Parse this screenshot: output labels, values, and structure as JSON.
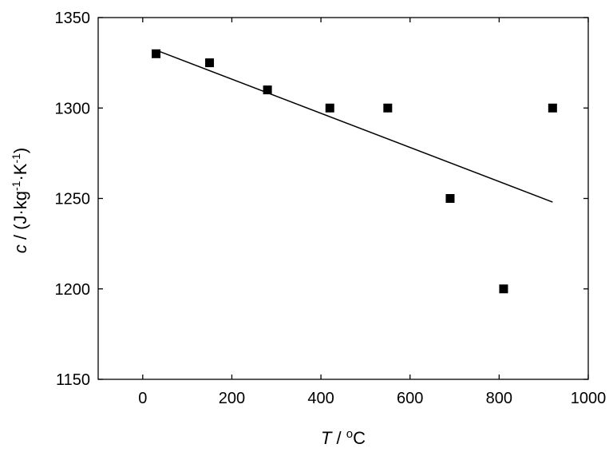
{
  "chart_data": {
    "type": "scatter",
    "title": "",
    "xlabel": {
      "symbol": "T",
      "unit_prefix": " / ",
      "unit_sup": "o",
      "unit_main": "C"
    },
    "ylabel": {
      "symbol": "c",
      "unit_open": " / (J·kg",
      "sup1": "-1",
      "mid": "·K",
      "sup2": "-1",
      "close": ")"
    },
    "xlim": [
      -100,
      1000
    ],
    "ylim": [
      1150,
      1350
    ],
    "xticks": [
      0,
      200,
      400,
      600,
      800,
      1000
    ],
    "yticks": [
      1150,
      1200,
      1250,
      1300,
      1350
    ],
    "grid": false,
    "colors": {
      "marker": "#000000",
      "line": "#000000",
      "axis": "#000000"
    },
    "series": [
      {
        "kind": "markers",
        "marker": "square",
        "x": [
          30,
          150,
          280,
          420,
          550,
          690,
          810,
          920
        ],
        "y": [
          1330,
          1325,
          1310,
          1300,
          1300,
          1250,
          1200,
          1300
        ]
      },
      {
        "kind": "fit-line",
        "x": [
          30,
          920
        ],
        "y": [
          1332,
          1248
        ]
      }
    ]
  }
}
